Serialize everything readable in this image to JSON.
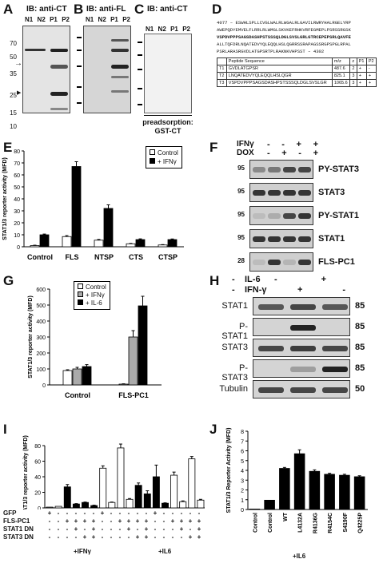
{
  "panels": {
    "A": {
      "label": "A",
      "title": "IB: anti-CT",
      "lanes": [
        "N1",
        "N2",
        "P1",
        "P2"
      ],
      "markers": [
        "70",
        "50",
        "35",
        "25",
        "15",
        "10"
      ],
      "arrow": "→",
      "arrowhead": "▶"
    },
    "B": {
      "label": "B",
      "title": "IB: anti-FL",
      "lanes": [
        "N1",
        "N2",
        "P1",
        "P2"
      ]
    },
    "C": {
      "label": "C",
      "title": "IB: anti-CT",
      "lanes": [
        "N1",
        "N2",
        "P1",
        "P2"
      ],
      "caption_line1": "preadsorption:",
      "caption_line2": "GST-CT"
    },
    "D": {
      "label": "D",
      "sequence_lines": [
        "4077 – ESWHLSPLLCVGLWALRLWGALRLGAVILRWRYHALRGELYRP",
        "AWEPQDYEMVELFLRRLRLWMGLSKVKEFRHKVRFEGMEPLPSRSSRGSK",
        "VSPDVPPPSAGSDASHPSTSSSQLDGLSVSLGRLGTRCEPEPSRLQAVFE",
        "ALLTQFDRLNQATEDVYQLEQQLHSLQGRRSSRAPAGSSRGPSPGLRPAL",
        "PSRLARASRGVDLATGPSRTPLRAKNKVHPSST – 4302"
      ],
      "table": {
        "headers": [
          "",
          "Peptide Sequence",
          "m/z",
          "z",
          "P1",
          "P2"
        ],
        "rows": [
          [
            "T1",
            "GVDLATGPSR",
            "487.6",
            "2",
            "+",
            "-"
          ],
          [
            "T2",
            "LNQATEDVYQLEQQLHSLQGR",
            "825.1",
            "3",
            "+",
            "+"
          ],
          [
            "T3",
            "VSPDVPPPSAGSDASHPSTSSSQLDGLSVSLGR",
            "1065.6",
            "3",
            "+",
            "+"
          ]
        ]
      }
    },
    "E": {
      "label": "E",
      "legend": [
        "Control",
        "+ IFNγ"
      ]
    },
    "F": {
      "label": "F",
      "treat1": "IFNγ",
      "treat2": "DOX",
      "signs1": [
        "-",
        "-",
        "+",
        "+"
      ],
      "signs2": [
        "-",
        "+",
        "-",
        "+"
      ],
      "rows": [
        "PY-STAT3",
        "STAT3",
        "PY-STAT1",
        "STAT1",
        "FLS-PC1"
      ],
      "markers": [
        "95",
        "95",
        "95",
        "95",
        "28"
      ]
    },
    "G": {
      "label": "G",
      "legend": [
        "Control",
        "+ IFNγ",
        "+ IL-6"
      ]
    },
    "H": {
      "label": "H",
      "treat1": "IL-6",
      "treat2": "IFN-γ",
      "signs1": [
        "-",
        "-",
        "+"
      ],
      "signs2": [
        "-",
        "+",
        "-"
      ],
      "rows": [
        "STAT1",
        "P-STAT1",
        "STAT3",
        "P-STAT3",
        "Tubulin"
      ],
      "markers": [
        "85",
        "85",
        "85",
        "85",
        "50"
      ]
    },
    "I": {
      "label": "I",
      "row_labels": [
        "GFP",
        "FLS-PC1",
        "STAT1 DN",
        "STAT3 DN"
      ],
      "signs": [
        [
          "+",
          "-",
          "-",
          "-",
          "-",
          "-"
        ],
        [
          "-",
          "-",
          "+",
          "+",
          "+",
          "+"
        ],
        [
          "-",
          "-",
          "-",
          "+",
          "-",
          "+"
        ],
        [
          "-",
          "-",
          "-",
          "-",
          "+",
          "+"
        ]
      ],
      "group_labels": [
        "+IFNγ",
        "+IL6"
      ]
    },
    "J": {
      "label": "J",
      "group_label": "+IL6"
    }
  },
  "chart_data": [
    {
      "panel": "E",
      "type": "bar",
      "ylabel": "STAT1/3 reporter activity (MFD)",
      "ylim": [
        0,
        80
      ],
      "yticks": [
        "0",
        "10",
        "20",
        "30",
        "40",
        "50",
        "60",
        "70",
        "80"
      ],
      "categories": [
        "Control",
        "FLS",
        "NTSP",
        "CTS",
        "CTSP"
      ],
      "series": [
        {
          "name": "Control",
          "color": "#ffffff",
          "values": [
            1,
            8.5,
            5.5,
            2.5,
            1.5
          ],
          "errors": [
            0.3,
            0.8,
            0.6,
            0.3,
            0.3
          ]
        },
        {
          "name": "+ IFNγ",
          "color": "#000000",
          "values": [
            10,
            67,
            32,
            6,
            6
          ],
          "errors": [
            0.6,
            4,
            3,
            0.6,
            0.5
          ]
        }
      ]
    },
    {
      "panel": "G",
      "type": "bar",
      "ylabel": "STAT1/3 reporter activity (MFD)",
      "ylim": [
        0,
        600
      ],
      "yticks": [
        "0",
        "100",
        "200",
        "300",
        "400",
        "500",
        "600"
      ],
      "categories": [
        "Control",
        "FLS-PC1"
      ],
      "series": [
        {
          "name": "Control",
          "color": "#ffffff",
          "values": [
            90,
            5
          ],
          "errors": [
            5,
            2
          ]
        },
        {
          "name": "+ IFNγ",
          "color": "#aaaaaa",
          "values": [
            100,
            300
          ],
          "errors": [
            10,
            40
          ]
        },
        {
          "name": "+ IL-6",
          "color": "#000000",
          "values": [
            115,
            495
          ],
          "errors": [
            12,
            60
          ]
        }
      ]
    },
    {
      "panel": "I",
      "type": "bar",
      "ylabel": "STAT1/3 reporter activity (MFD)",
      "ylim": [
        0,
        80
      ],
      "yticks": [
        "0",
        "20",
        "40",
        "60",
        "80"
      ],
      "columns": [
        {
          "v": 1,
          "e": 0,
          "fill": "#ffffff"
        },
        {
          "v": 2,
          "e": 0,
          "fill": "#ffffff"
        },
        {
          "v": 27,
          "e": 3,
          "fill": "#000000"
        },
        {
          "v": 5,
          "e": 0.5,
          "fill": "#000000"
        },
        {
          "v": 7,
          "e": 0.5,
          "fill": "#000000"
        },
        {
          "v": 3,
          "e": 0.5,
          "fill": "#000000"
        },
        {
          "v": 51,
          "e": 3,
          "fill": "#ffffff"
        },
        {
          "v": 7,
          "e": 0.5,
          "fill": "#ffffff"
        },
        {
          "v": 77,
          "e": 5,
          "fill": "#ffffff"
        },
        {
          "v": 11,
          "e": 1,
          "fill": "#ffffff"
        },
        {
          "v": 29,
          "e": 3,
          "fill": "#000000"
        },
        {
          "v": 18,
          "e": 4,
          "fill": "#000000"
        },
        {
          "v": 40,
          "e": 15,
          "fill": "#000000"
        },
        {
          "v": 6,
          "e": 0.5,
          "fill": "#000000"
        },
        {
          "v": 42,
          "e": 4,
          "fill": "#ffffff"
        },
        {
          "v": 8,
          "e": 1,
          "fill": "#ffffff"
        },
        {
          "v": 63,
          "e": 3,
          "fill": "#ffffff"
        },
        {
          "v": 10,
          "e": 1,
          "fill": "#ffffff"
        }
      ]
    },
    {
      "panel": "J",
      "type": "bar",
      "ylabel": "STAT1/3 Reporter Activity (MFD)",
      "ylim": [
        0,
        8
      ],
      "yticks": [
        "0",
        "1",
        "2",
        "3",
        "4",
        "5",
        "6",
        "7",
        "8"
      ],
      "categories": [
        "Control",
        "Control",
        "WT",
        "L4132A",
        "R4136G",
        "R4154C",
        "S4190F",
        "Q4225P"
      ],
      "values": [
        0.05,
        0.95,
        4.2,
        5.7,
        3.9,
        3.6,
        3.5,
        3.35
      ],
      "errors": [
        0,
        0,
        0.1,
        0.4,
        0.15,
        0.1,
        0.1,
        0.1
      ]
    }
  ]
}
